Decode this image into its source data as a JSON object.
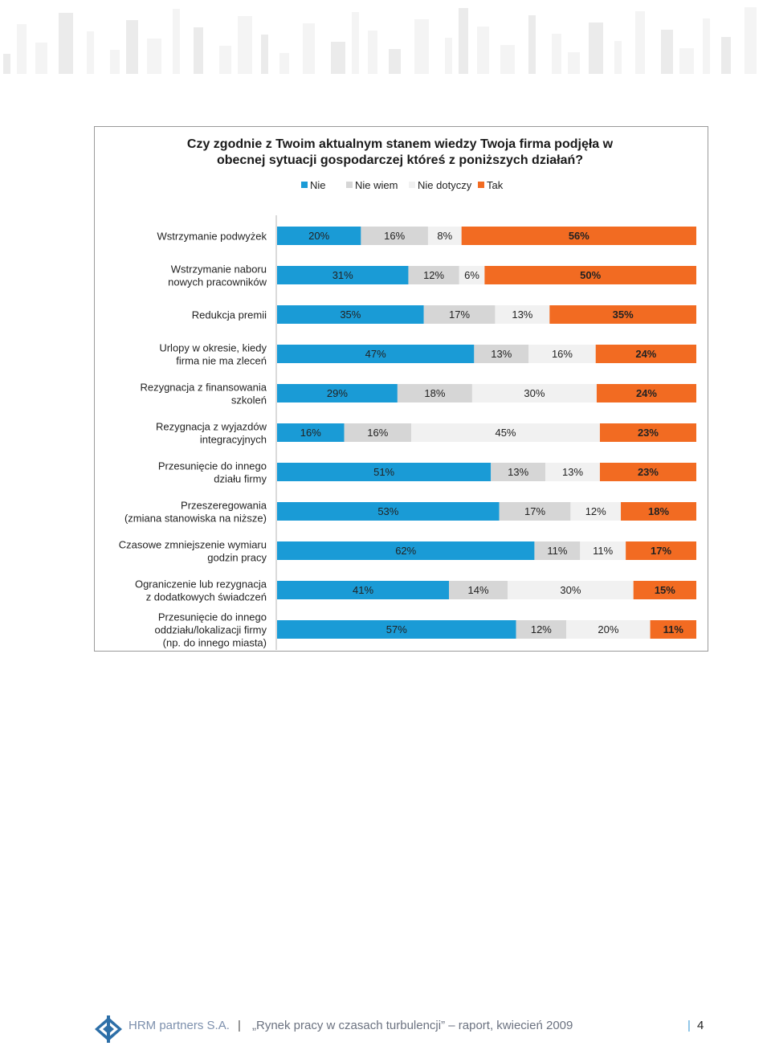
{
  "chart_data": {
    "type": "bar",
    "stacked": true,
    "orientation": "horizontal",
    "title": "Czy zgodnie z Twoim aktualnym stanem wiedzy Twoja firma podjęła w obecnej sytuacji gospodarczej któreś z poniższych działań?",
    "title_lines": [
      "Czy zgodnie z Twoim aktualnym stanem wiedzy Twoja firma podjęła w",
      "obecnej sytuacji gospodarczej któreś z poniższych działań?"
    ],
    "legend_position": "top",
    "unit": "%",
    "category_lines": [
      [
        "Wstrzymanie podwyżek"
      ],
      [
        "Wstrzymanie naboru",
        "nowych pracowników"
      ],
      [
        "Redukcja premii"
      ],
      [
        "Urlopy w okresie, kiedy",
        "firma nie ma zleceń"
      ],
      [
        "Rezygnacja z finansowania",
        "szkoleń"
      ],
      [
        "Rezygnacja z wyjazdów",
        "integracyjnych"
      ],
      [
        "Przesunięcie do innego",
        "działu firmy"
      ],
      [
        "Przeszeregowania",
        "(zmiana stanowiska na niższe)"
      ],
      [
        "Czasowe zmniejszenie wymiaru",
        "godzin pracy"
      ],
      [
        "Ograniczenie lub rezygnacja",
        "z dodatkowych świadczeń"
      ],
      [
        "Przesunięcie do innego",
        "oddziału/lokalizacji firmy",
        "(np. do innego miasta)"
      ]
    ],
    "series": [
      {
        "name": "Nie",
        "color": "#1a9bd6",
        "values": [
          20,
          31,
          35,
          47,
          29,
          16,
          51,
          53,
          62,
          41,
          57
        ]
      },
      {
        "name": "Nie wiem",
        "color": "#d6d6d6",
        "values": [
          16,
          12,
          17,
          13,
          18,
          16,
          13,
          17,
          11,
          14,
          12
        ]
      },
      {
        "name": "Nie dotyczy",
        "color": "#f1f1f1",
        "values": [
          8,
          6,
          13,
          16,
          30,
          45,
          13,
          12,
          11,
          30,
          20
        ]
      },
      {
        "name": "Tak",
        "color": "#f26b22",
        "values": [
          56,
          50,
          35,
          24,
          24,
          23,
          23,
          18,
          17,
          15,
          11
        ]
      }
    ]
  },
  "footer": {
    "brand": "HRM partners S.A.",
    "separator": "|",
    "report": "„Rynek pracy w czasach turbulencji” – raport, kwiecień 2009",
    "pipe": "|",
    "page": "4"
  }
}
